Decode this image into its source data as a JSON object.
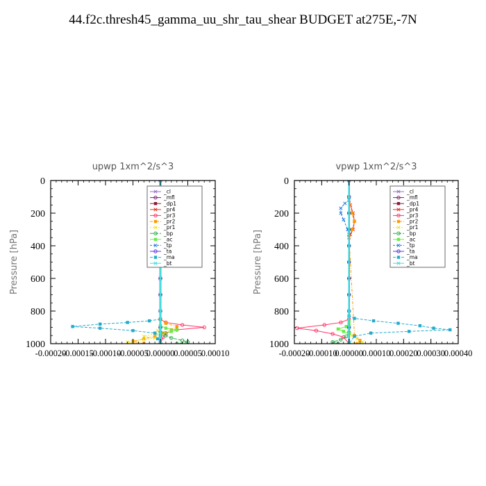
{
  "title": "44.f2c.thresh45_gamma_uu_shr_tau_shear  BUDGET at275E,-7N",
  "colors": {
    "_cl": "#9966cc",
    "_mfl": "#7a1f6e",
    "_dp1": "#8b1a3a",
    "_pr4": "#e8291c",
    "_pr3": "#ff3366",
    "_pr2": "#ff9900",
    "_pr1": "#f0e020",
    "_bp": "#22aa44",
    "_ac": "#66ee44",
    "_tp": "#2277dd",
    "_ta": "#5533dd",
    "_ma": "#22aacc",
    "_bt": "#44dddd"
  },
  "chart_data": [
    {
      "type": "line",
      "title": "upwp   1xm^2/s^3",
      "ylabel": "Pressure [hPa]",
      "ylim": [
        1000,
        0
      ],
      "xlim": [
        -0.0002,
        0.0001
      ],
      "xticks": [
        -0.0002,
        -0.00015,
        -0.0001,
        -5e-05,
        0.0,
        5e-05,
        0.0001
      ],
      "xtick_labels": [
        "-0.00020",
        "-0.00015",
        "-0.00010",
        "-0.00005",
        "0.00000",
        "0.00005",
        "0.00010"
      ],
      "yticks": [
        0,
        200,
        400,
        600,
        800,
        1000
      ],
      "ytick_labels": [
        "0",
        "200",
        "400",
        "600",
        "800",
        "1000"
      ],
      "legend": "top-right",
      "series": [
        {
          "name": "_cl",
          "x": [
            0,
            0,
            0,
            0,
            0,
            0,
            0,
            0,
            0,
            0,
            0
          ],
          "y": [
            0,
            100,
            200,
            300,
            400,
            500,
            600,
            700,
            800,
            900,
            1000
          ]
        },
        {
          "name": "_mfl",
          "x": [
            0,
            0,
            0,
            0,
            0,
            0,
            0,
            0,
            0,
            0,
            0
          ],
          "y": [
            0,
            100,
            200,
            300,
            400,
            500,
            600,
            700,
            800,
            900,
            1000
          ]
        },
        {
          "name": "_dp1",
          "x": [
            0,
            0,
            0,
            0,
            0,
            0,
            0,
            0,
            0,
            0,
            0
          ],
          "y": [
            0,
            100,
            200,
            300,
            400,
            500,
            600,
            700,
            800,
            900,
            1000
          ]
        },
        {
          "name": "_pr4",
          "x": [
            0,
            3e-06,
            5e-06,
            4e-06,
            2e-06,
            0,
            0,
            0,
            0,
            0,
            0,
            0
          ],
          "y": [
            100,
            150,
            200,
            250,
            300,
            350,
            400,
            500,
            600,
            700,
            800,
            850
          ]
        },
        {
          "name": "_pr3",
          "x": [
            0,
            0,
            1e-05,
            4e-05,
            8e-05,
            3e-05,
            1e-05,
            5e-06,
            0
          ],
          "y": [
            800,
            850,
            870,
            885,
            900,
            915,
            935,
            960,
            1000
          ]
        },
        {
          "name": "_pr2",
          "x": [
            0,
            0,
            1e-05,
            3e-05,
            2e-05,
            5e-06,
            -1e-05,
            -3e-05,
            -5e-05,
            -3e-05
          ],
          "y": [
            800,
            850,
            875,
            895,
            915,
            935,
            955,
            970,
            985,
            1000
          ]
        },
        {
          "name": "_pr1",
          "x": [
            0,
            0,
            -5e-06,
            -1e-05,
            -3e-05,
            -1e-05,
            -3e-05,
            -6e-05,
            -4e-05
          ],
          "y": [
            800,
            900,
            920,
            940,
            955,
            965,
            975,
            990,
            1000
          ]
        },
        {
          "name": "_bp",
          "x": [
            0,
            0,
            1e-05,
            2e-05,
            4e-05,
            5e-05,
            3e-05
          ],
          "y": [
            900,
            930,
            950,
            965,
            980,
            990,
            1000
          ]
        },
        {
          "name": "_ac",
          "x": [
            0,
            0,
            1e-05,
            3e-05,
            2e-05,
            0
          ],
          "y": [
            850,
            890,
            905,
            915,
            925,
            940
          ]
        },
        {
          "name": "_tp",
          "x": [
            0,
            -1e-05,
            -1.5e-05,
            -2e-05,
            -1.5e-05,
            -5e-06,
            0
          ],
          "y": [
            120,
            150,
            180,
            200,
            230,
            260,
            280
          ]
        },
        {
          "name": "_ta",
          "x": [
            0,
            0,
            0,
            0,
            0,
            0,
            0,
            0,
            0,
            0,
            0
          ],
          "y": [
            0,
            100,
            200,
            300,
            400,
            500,
            600,
            700,
            800,
            900,
            1000
          ]
        },
        {
          "name": "_ma",
          "x": [
            0,
            0,
            -2e-05,
            -6e-05,
            -0.00011,
            -0.00016,
            -0.00011,
            -5e-05,
            -1e-05,
            0,
            -5e-06,
            0
          ],
          "y": [
            800,
            850,
            860,
            870,
            880,
            895,
            905,
            920,
            935,
            950,
            970,
            1000
          ]
        },
        {
          "name": "_bt",
          "x": [
            0,
            0,
            0,
            0,
            0,
            0,
            0,
            0,
            0,
            0,
            0
          ],
          "y": [
            0,
            100,
            200,
            300,
            400,
            500,
            600,
            700,
            800,
            900,
            1000
          ]
        }
      ]
    },
    {
      "type": "line",
      "title": "vpwp   1xm^2/s^3",
      "ylabel": "Pressure [hPa]",
      "ylim": [
        1000,
        0
      ],
      "xlim": [
        -0.0002,
        0.0004
      ],
      "xticks": [
        -0.0002,
        -0.0001,
        0.0,
        0.0001,
        0.0002,
        0.0003,
        0.0004
      ],
      "xtick_labels": [
        "-0.00020",
        "-0.00010",
        "0.00000",
        "0.00010",
        "0.00020",
        "0.00030",
        "0.00040"
      ],
      "yticks": [
        0,
        200,
        400,
        600,
        800,
        1000
      ],
      "ytick_labels": [
        "0",
        "200",
        "400",
        "600",
        "800",
        "1000"
      ],
      "legend": "top-right",
      "series": [
        {
          "name": "_cl",
          "x": [
            0,
            0,
            0,
            0,
            0,
            0,
            0,
            0,
            0,
            0,
            0
          ],
          "y": [
            0,
            100,
            200,
            300,
            400,
            500,
            600,
            700,
            800,
            900,
            1000
          ]
        },
        {
          "name": "_mfl",
          "x": [
            0,
            0,
            0,
            0,
            0,
            0,
            0,
            0,
            0,
            0,
            0
          ],
          "y": [
            0,
            100,
            200,
            300,
            400,
            500,
            600,
            700,
            800,
            900,
            1000
          ]
        },
        {
          "name": "_dp1",
          "x": [
            0,
            0,
            0,
            0,
            0,
            0,
            0,
            0,
            0,
            0,
            0
          ],
          "y": [
            0,
            100,
            200,
            300,
            400,
            500,
            600,
            700,
            800,
            900,
            1000
          ]
        },
        {
          "name": "_pr4",
          "x": [
            0,
            5e-06,
            1.5e-05,
            2e-05,
            1.5e-05,
            5e-06,
            0,
            0
          ],
          "y": [
            100,
            150,
            200,
            250,
            300,
            330,
            350,
            800
          ]
        },
        {
          "name": "_pr3",
          "x": [
            0,
            0,
            -3e-05,
            -9e-05,
            -0.00019,
            -0.00012,
            -6e-05,
            -2e-05,
            0
          ],
          "y": [
            800,
            850,
            870,
            885,
            905,
            920,
            940,
            960,
            1000
          ]
        },
        {
          "name": "_pr2",
          "x": [
            0,
            1e-05,
            2e-05,
            1e-05,
            0,
            2e-05,
            4e-05,
            3e-05
          ],
          "y": [
            100,
            200,
            250,
            300,
            340,
            950,
            980,
            1000
          ]
        },
        {
          "name": "_pr1",
          "x": [
            0,
            0,
            1e-05,
            3e-05,
            5e-05,
            2e-05
          ],
          "y": [
            800,
            920,
            950,
            970,
            990,
            1000
          ]
        },
        {
          "name": "_bp",
          "x": [
            0,
            0,
            -1e-05,
            -3e-05,
            -6e-05,
            -4e-05
          ],
          "y": [
            900,
            930,
            955,
            975,
            990,
            1000
          ]
        },
        {
          "name": "_ac",
          "x": [
            0,
            0,
            -1e-05,
            -4e-05,
            -2e-05,
            0
          ],
          "y": [
            860,
            880,
            895,
            910,
            925,
            940
          ]
        },
        {
          "name": "_tp",
          "x": [
            0,
            -1.5e-05,
            -3e-05,
            -3e-05,
            -2e-05,
            -5e-06,
            0
          ],
          "y": [
            120,
            140,
            170,
            200,
            240,
            300,
            330
          ]
        },
        {
          "name": "_ta",
          "x": [
            0,
            0,
            0,
            0,
            0,
            0,
            0,
            0,
            0,
            0,
            0
          ],
          "y": [
            0,
            100,
            200,
            300,
            400,
            500,
            600,
            700,
            800,
            900,
            1000
          ]
        },
        {
          "name": "_ma",
          "x": [
            0,
            0,
            2e-05,
            9e-05,
            0.00018,
            0.00026,
            0.00031,
            0.00037,
            0.00022,
            8e-05,
            2e-05,
            0
          ],
          "y": [
            800,
            830,
            845,
            860,
            875,
            890,
            905,
            915,
            925,
            935,
            955,
            1000
          ]
        },
        {
          "name": "_bt",
          "x": [
            0,
            0,
            0,
            0,
            0,
            0,
            0,
            0,
            0,
            0,
            0
          ],
          "y": [
            0,
            100,
            200,
            300,
            400,
            500,
            600,
            700,
            800,
            900,
            1000
          ]
        }
      ]
    }
  ]
}
